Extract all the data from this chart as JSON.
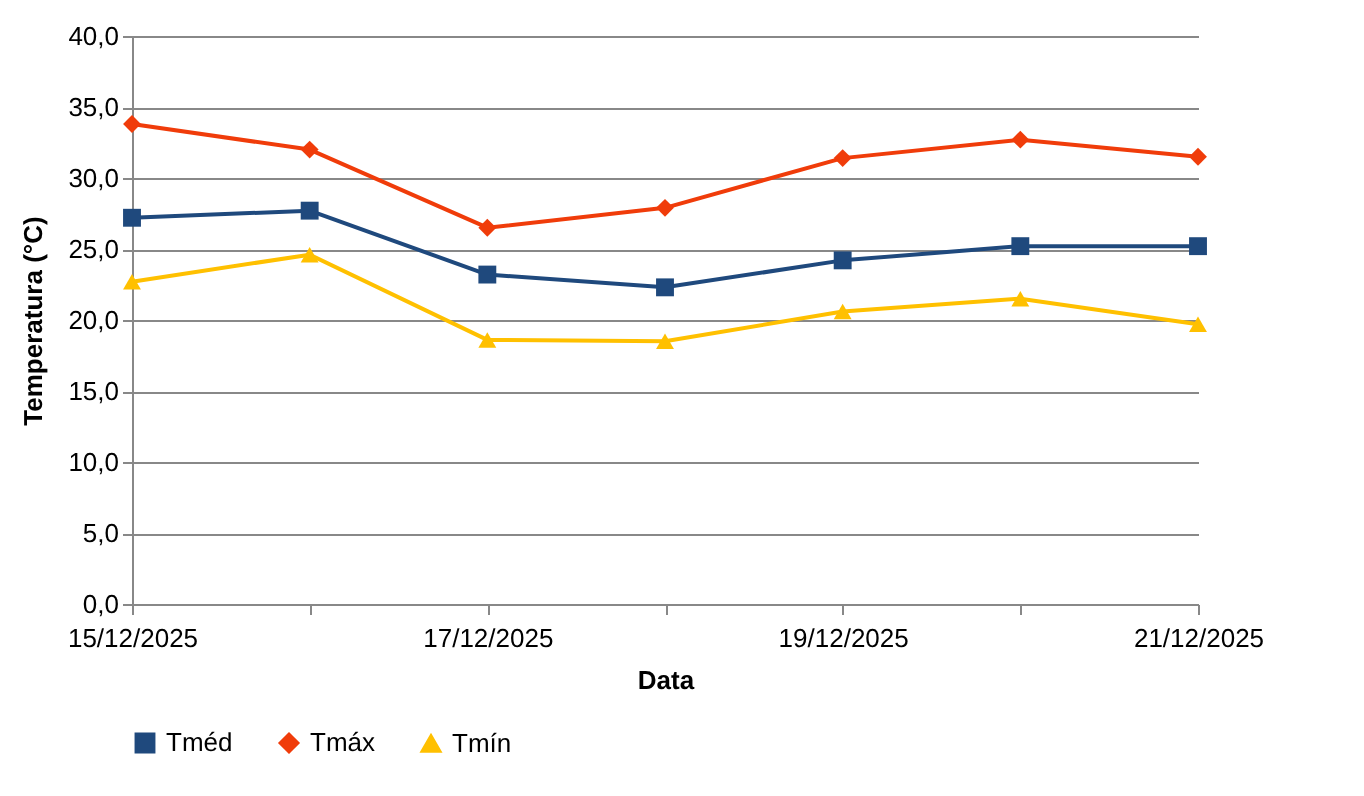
{
  "chart_data": {
    "type": "line",
    "xlabel": "Data",
    "ylabel": "Temperatura (°C)",
    "x": [
      "2025-12-15",
      "2025-12-16",
      "2025-12-17",
      "2025-12-18",
      "2025-12-19",
      "2025-12-20",
      "2025-12-21"
    ],
    "series": [
      {
        "name": "Tméd",
        "color": "#1f497d",
        "marker": "square",
        "values": [
          27.2,
          27.7,
          23.2,
          22.3,
          24.2,
          25.2,
          25.2
        ]
      },
      {
        "name": "Tmáx",
        "color": "#f03c0a",
        "marker": "diamond",
        "values": [
          33.8,
          32.0,
          26.5,
          27.9,
          31.4,
          32.7,
          31.5
        ]
      },
      {
        "name": "Tmín",
        "color": "#ffc000",
        "marker": "triangle",
        "values": [
          22.7,
          24.6,
          18.6,
          18.5,
          20.6,
          21.5,
          19.7
        ]
      }
    ],
    "xlim": [
      "2025-12-15",
      "2025-12-21"
    ],
    "xticks": [
      {
        "value": "2025-12-15",
        "label": "15/12/2025"
      },
      {
        "value": "2025-12-16",
        "label": null
      },
      {
        "value": "2025-12-17",
        "label": "17/12/2025"
      },
      {
        "value": "2025-12-18",
        "label": null
      },
      {
        "value": "2025-12-19",
        "label": "19/12/2025"
      },
      {
        "value": "2025-12-20",
        "label": null
      },
      {
        "value": "2025-12-21",
        "label": "21/12/2025"
      }
    ],
    "ylim": [
      0,
      40
    ],
    "yticks": [
      {
        "value": 0,
        "label": "0,0"
      },
      {
        "value": 5,
        "label": "5,0"
      },
      {
        "value": 10,
        "label": "10,0"
      },
      {
        "value": 15,
        "label": "15,0"
      },
      {
        "value": 20,
        "label": "20,0"
      },
      {
        "value": 25,
        "label": "25,0"
      },
      {
        "value": 30,
        "label": "30,0"
      },
      {
        "value": 35,
        "label": "35,0"
      },
      {
        "value": 40,
        "label": "40,0"
      }
    ],
    "grid": "y",
    "legend": "bottom",
    "line_style": "solid"
  }
}
